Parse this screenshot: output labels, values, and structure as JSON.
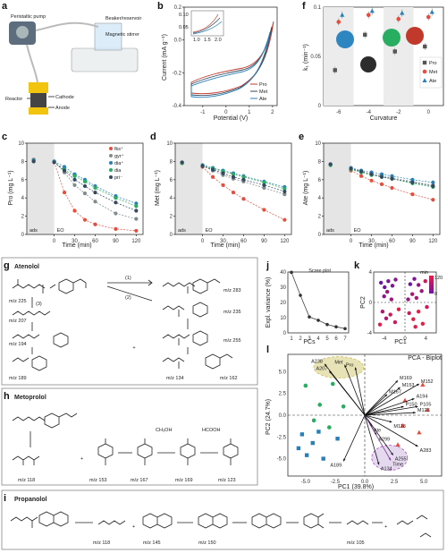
{
  "panels": {
    "a": {
      "label": "a",
      "callouts": [
        "Peristaltic pump",
        "Beaker/reservoir",
        "Magnetic stirrer",
        "Reactor",
        "Cathode",
        "Anode"
      ]
    },
    "b": {
      "label": "b"
    },
    "f": {
      "label": "f"
    },
    "c": {
      "label": "c"
    },
    "d": {
      "label": "d"
    },
    "e": {
      "label": "e"
    },
    "g": {
      "label": "g",
      "title": "Atenolol",
      "steps": [
        "(1)",
        "(2)",
        "(3)"
      ],
      "mz": [
        "m/z 225",
        "m/z 207",
        "m/z 194",
        "m/z 189",
        "m/z 283",
        "m/z 235",
        "m/z 255",
        "m/z 134",
        "m/z 162"
      ]
    },
    "h": {
      "label": "h",
      "title": "Metoprolol",
      "mz": [
        "m/z 118",
        "m/z 153",
        "m/z 167",
        "m/z 169",
        "m/z 123"
      ],
      "fragments": [
        "CH₃OH",
        "HCOOH"
      ]
    },
    "i": {
      "label": "i",
      "title": "Propanolol",
      "mz": [
        "m/z 118",
        "m/z 145",
        "m/z 150",
        "m/z 105"
      ]
    },
    "j": {
      "label": "j"
    },
    "k": {
      "label": "k"
    },
    "l": {
      "label": "l"
    }
  },
  "chart_data": [
    {
      "id": "b",
      "type": "line",
      "xlabel": "Potential (V)",
      "ylabel": "Current (mA g⁻¹)",
      "xlim": [
        -1.8,
        2.2
      ],
      "ylim": [
        -0.4,
        0.2
      ],
      "xticks": [
        "-1",
        "0",
        "1",
        "2"
      ],
      "yticks": [
        "-0.4",
        "-0.2",
        "0.0",
        "0.2"
      ],
      "legend": "bottom-right",
      "series": [
        {
          "name": "Pro",
          "color": "#c0392b"
        },
        {
          "name": "Met",
          "color": "#34495e"
        },
        {
          "name": "Ate",
          "color": "#2980b9"
        }
      ],
      "inset": {
        "xticks": [
          "1.0",
          "1.5",
          "2.0"
        ],
        "yticks": [
          "0.10",
          "0.05"
        ]
      }
    },
    {
      "id": "f",
      "type": "scatter",
      "xlabel": "Curvature",
      "ylabel": "k₁ (min⁻¹)",
      "categories": [
        "-6",
        "-4",
        "-2",
        "0"
      ],
      "ylim": [
        0,
        0.1
      ],
      "yticks": [
        "0",
        "0.05",
        "0.1"
      ],
      "legend": "right",
      "series": [
        {
          "name": "Pro",
          "color": "#555555",
          "marker": "square",
          "values": [
            0.036,
            0.072,
            0.055,
            0.06
          ]
        },
        {
          "name": "Met",
          "color": "#e74c3c",
          "marker": "circle",
          "values": [
            0.085,
            0.092,
            0.088,
            0.09
          ]
        },
        {
          "name": "Ate",
          "color": "#2980b9",
          "marker": "triangle",
          "values": [
            0.092,
            0.096,
            0.094,
            0.095
          ]
        }
      ]
    },
    {
      "id": "c",
      "type": "line",
      "xlabel": "Time (min)",
      "ylabel": "Pro (mg L⁻¹)",
      "x": [
        -30,
        0,
        15,
        30,
        45,
        60,
        90,
        120
      ],
      "xticks": [
        "0",
        "30",
        "60",
        "90",
        "120"
      ],
      "ylim": [
        0,
        10
      ],
      "yticks": [
        "0",
        "2",
        "4",
        "6",
        "8",
        "10"
      ],
      "shaded": [
        "ads",
        "EO"
      ],
      "legend": "top-right",
      "series": [
        {
          "name": "fks⁺",
          "color": "#e74c3c",
          "values": [
            8.2,
            7.9,
            4.6,
            2.6,
            1.6,
            1.1,
            0.6,
            0.4
          ]
        },
        {
          "name": "gyr⁺",
          "color": "#7f8c8d",
          "values": [
            8.2,
            8.0,
            6.8,
            5.4,
            4.5,
            3.6,
            2.3,
            1.7
          ]
        },
        {
          "name": "dia⁺",
          "color": "#2980b9",
          "values": [
            8.1,
            8.0,
            7.4,
            6.6,
            6.0,
            5.3,
            4.2,
            3.4
          ]
        },
        {
          "name": "dia",
          "color": "#27ae60",
          "values": [
            8.0,
            7.9,
            7.1,
            6.4,
            5.8,
            5.1,
            4.0,
            3.1
          ]
        },
        {
          "name": "pri⁻",
          "color": "#34495e",
          "values": [
            8.0,
            7.9,
            7.0,
            6.0,
            5.3,
            4.6,
            3.5,
            2.6
          ]
        }
      ]
    },
    {
      "id": "d",
      "type": "line",
      "xlabel": "Time (min)",
      "ylabel": "Met (mg L⁻¹)",
      "x": [
        -30,
        0,
        15,
        30,
        45,
        60,
        90,
        120
      ],
      "xticks": [
        "0",
        "30",
        "60",
        "90",
        "120"
      ],
      "ylim": [
        0,
        10
      ],
      "yticks": [
        "0",
        "2",
        "4",
        "6",
        "8",
        "10"
      ],
      "shaded": [
        "ads",
        "EO"
      ],
      "series": [
        {
          "name": "fks⁺",
          "color": "#e74c3c",
          "values": [
            7.8,
            7.4,
            6.3,
            5.4,
            4.6,
            3.9,
            2.7,
            1.6
          ]
        },
        {
          "name": "gyr⁺",
          "color": "#7f8c8d",
          "values": [
            7.8,
            7.5,
            7.0,
            6.5,
            6.1,
            5.8,
            5.1,
            4.4
          ]
        },
        {
          "name": "dia⁺",
          "color": "#2980b9",
          "values": [
            7.9,
            7.6,
            7.3,
            7.0,
            6.7,
            6.4,
            5.8,
            5.2
          ]
        },
        {
          "name": "dia",
          "color": "#27ae60",
          "values": [
            7.8,
            7.5,
            7.2,
            6.9,
            6.6,
            6.3,
            5.7,
            5.0
          ]
        },
        {
          "name": "pri⁻",
          "color": "#34495e",
          "values": [
            7.9,
            7.5,
            7.1,
            6.7,
            6.3,
            6.0,
            5.4,
            4.7
          ]
        }
      ]
    },
    {
      "id": "e",
      "type": "line",
      "xlabel": "Time (min)",
      "ylabel": "Ate (mg L⁻¹)",
      "x": [
        -30,
        0,
        15,
        30,
        45,
        60,
        90,
        120
      ],
      "xticks": [
        "0",
        "30",
        "60",
        "90",
        "120"
      ],
      "ylim": [
        0,
        10
      ],
      "yticks": [
        "0",
        "2",
        "4",
        "6",
        "8",
        "10"
      ],
      "shaded": [
        "ads",
        "EO"
      ],
      "series": [
        {
          "name": "fks⁺",
          "color": "#e74c3c",
          "values": [
            7.6,
            7.0,
            6.4,
            5.9,
            5.5,
            5.1,
            4.4,
            3.8
          ]
        },
        {
          "name": "gyr⁺",
          "color": "#7f8c8d",
          "values": [
            7.6,
            7.2,
            6.9,
            6.6,
            6.4,
            6.2,
            5.8,
            5.4
          ]
        },
        {
          "name": "dia⁺",
          "color": "#2980b9",
          "values": [
            7.7,
            7.3,
            7.0,
            6.8,
            6.6,
            6.4,
            6.0,
            5.7
          ]
        },
        {
          "name": "dia",
          "color": "#27ae60",
          "values": [
            7.6,
            7.1,
            6.8,
            6.5,
            6.3,
            6.1,
            5.6,
            5.2
          ]
        },
        {
          "name": "pri⁻",
          "color": "#34495e",
          "values": [
            7.7,
            7.2,
            6.9,
            6.6,
            6.3,
            6.1,
            5.7,
            5.3
          ]
        }
      ]
    },
    {
      "id": "j",
      "type": "line",
      "title": "Scree plot",
      "xlabel": "PCs",
      "ylabel": "Expl. variance (%)",
      "categories": [
        "1",
        "2",
        "3",
        "4",
        "5",
        "6",
        "7"
      ],
      "values": [
        39.8,
        24.7,
        10.5,
        8.3,
        5.5,
        4.0,
        2.8
      ],
      "ylim": [
        0,
        40
      ],
      "yticks": [
        "0",
        "10",
        "20",
        "30",
        "40"
      ]
    },
    {
      "id": "k",
      "type": "scatter",
      "xlabel": "PC1",
      "ylabel": "PC2",
      "xlim": [
        -6,
        6
      ],
      "ylim": [
        -4,
        4
      ],
      "xticks": [
        "-4",
        "0",
        "4"
      ],
      "yticks": [
        "-4",
        "0",
        "4"
      ],
      "colorbar": {
        "label": "min",
        "ticks": [
          "120",
          "0"
        ]
      },
      "points": [
        [
          -4.6,
          2.6,
          0
        ],
        [
          -3.9,
          2.0,
          0
        ],
        [
          -3.2,
          2.8,
          15
        ],
        [
          -2.4,
          2.2,
          15
        ],
        [
          -1.8,
          3.0,
          30
        ],
        [
          -4.0,
          0.8,
          30
        ],
        [
          -3.4,
          1.4,
          45
        ],
        [
          -2.6,
          0.4,
          45
        ],
        [
          -4.3,
          -1.2,
          60
        ],
        [
          -3.6,
          -2.1,
          60
        ],
        [
          -2.8,
          -1.6,
          90
        ],
        [
          -1.9,
          -2.6,
          90
        ],
        [
          -1.2,
          -0.9,
          120
        ],
        [
          -4.8,
          -2.9,
          120
        ],
        [
          1.0,
          2.4,
          0
        ],
        [
          1.8,
          3.1,
          15
        ],
        [
          2.6,
          2.3,
          30
        ],
        [
          3.2,
          1.5,
          45
        ],
        [
          1.4,
          1.1,
          60
        ],
        [
          2.2,
          0.6,
          60
        ],
        [
          3.9,
          2.8,
          90
        ],
        [
          0.8,
          -1.4,
          90
        ],
        [
          1.6,
          -2.2,
          120
        ],
        [
          2.6,
          -1.2,
          120
        ],
        [
          3.4,
          -2.8,
          120
        ],
        [
          4.2,
          -0.6,
          90
        ],
        [
          0.6,
          0.4,
          45
        ],
        [
          2.0,
          -3.2,
          120
        ]
      ]
    },
    {
      "id": "l",
      "type": "scatter",
      "title": "PCA - Biplot",
      "xlabel": "PC1 (39.8%)",
      "ylabel": "PC2 (24.7%)",
      "xlim": [
        -6.5,
        6.5
      ],
      "ylim": [
        -7,
        7
      ],
      "xticks": [
        "-5.0",
        "-2.5",
        "0.0",
        "2.5",
        "5.0"
      ],
      "yticks": [
        "7.5",
        "5.0",
        "2.5",
        "0.0",
        "-2.5",
        "-5.0",
        "-7.5"
      ],
      "groups": [
        {
          "name": "Pro",
          "color": "#e74c3c",
          "marker": "triangle",
          "points": [
            [
              3.4,
              1.7
            ],
            [
              4.6,
              -2.0
            ],
            [
              4.9,
              3.5
            ],
            [
              2.8,
              -3.4
            ],
            [
              5.3,
              0.6
            ],
            [
              3.2,
              -1.2
            ]
          ]
        },
        {
          "name": "Met",
          "color": "#27ae60",
          "marker": "circle",
          "points": [
            [
              -5.0,
              3.4
            ],
            [
              -3.8,
              1.2
            ],
            [
              -2.7,
              3.6
            ],
            [
              -4.3,
              -0.6
            ],
            [
              -1.8,
              1.0
            ],
            [
              -3.0,
              -1.4
            ]
          ]
        },
        {
          "name": "Ate",
          "color": "#2980b9",
          "marker": "square",
          "points": [
            [
              -5.3,
              -2.2
            ],
            [
              -4.4,
              -3.2
            ],
            [
              -4.9,
              -4.6
            ],
            [
              -3.5,
              -5.0
            ],
            [
              -2.3,
              -2.7
            ],
            [
              -3.9,
              -1.9
            ],
            [
              -5.6,
              -3.8
            ]
          ]
        }
      ],
      "loadings": [
        {
          "name": "A238",
          "x": -3.4,
          "y": 5.9
        },
        {
          "name": "Met",
          "x": -1.7,
          "y": 5.8
        },
        {
          "name": "Pro",
          "x": -0.8,
          "y": 5.5
        },
        {
          "name": "A207",
          "x": -3.0,
          "y": 5.1
        },
        {
          "name": "M169",
          "x": 2.8,
          "y": 4.0
        },
        {
          "name": "M153",
          "x": 3.0,
          "y": 3.2
        },
        {
          "name": "M167",
          "x": 1.9,
          "y": 2.4
        },
        {
          "name": "M152",
          "x": 4.6,
          "y": 3.6
        },
        {
          "name": "A194",
          "x": 4.2,
          "y": 1.9
        },
        {
          "name": "P105",
          "x": 4.5,
          "y": 1.0
        },
        {
          "name": "P150",
          "x": 3.3,
          "y": 1.0
        },
        {
          "name": "M123",
          "x": 4.3,
          "y": 0.3
        },
        {
          "name": "M118",
          "x": 2.3,
          "y": -0.8
        },
        {
          "name": "Ate",
          "x": 0.6,
          "y": -1.3
        },
        {
          "name": "A299",
          "x": 1.0,
          "y": -2.3
        },
        {
          "name": "A283",
          "x": 4.5,
          "y": -3.6
        },
        {
          "name": "A255",
          "x": 2.4,
          "y": -4.6
        },
        {
          "name": "Time",
          "x": 2.2,
          "y": -5.2
        },
        {
          "name": "A134",
          "x": 1.2,
          "y": -5.7
        },
        {
          "name": "A189",
          "x": -1.8,
          "y": -5.3
        }
      ]
    }
  ]
}
